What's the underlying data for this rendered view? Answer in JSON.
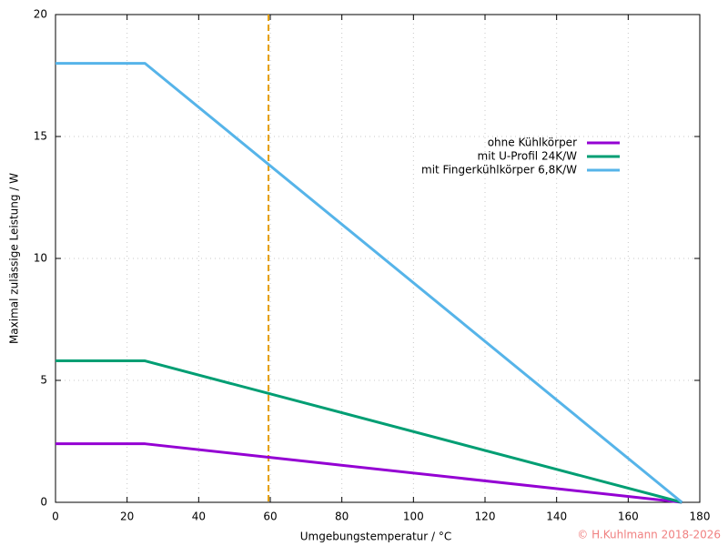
{
  "chart_data": {
    "type": "line",
    "xlabel": "Umgebungstemperatur / °C",
    "ylabel": "Maximal zulässige Leistung / W",
    "x": [
      0,
      25,
      175
    ],
    "series": [
      {
        "name": "ohne Kühlkörper",
        "color": "#9400d3",
        "values": [
          2.4,
          2.4,
          0
        ]
      },
      {
        "name": "mit U-Profil 24K/W",
        "color": "#009e73",
        "values": [
          5.8,
          5.8,
          0
        ]
      },
      {
        "name": "mit Fingerkühlkörper 6,8K/W",
        "color": "#56b4e9",
        "values": [
          18,
          18,
          0
        ]
      }
    ],
    "vline": {
      "x": 59.5,
      "color": "#e69f00"
    },
    "xlim": [
      0,
      180
    ],
    "xticks": [
      0,
      20,
      40,
      60,
      80,
      100,
      120,
      140,
      160,
      180
    ],
    "ylim": [
      0,
      20
    ],
    "yticks": [
      0,
      5,
      10,
      15,
      20
    ],
    "grid": true,
    "legend": "upper-right",
    "copyright": "© H.Kuhlmann 2018-2026"
  }
}
